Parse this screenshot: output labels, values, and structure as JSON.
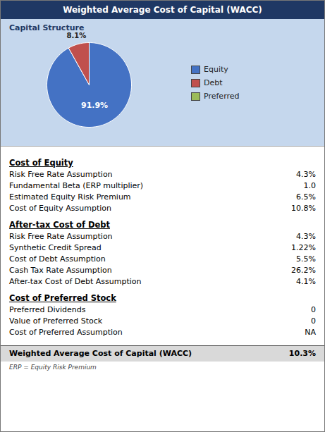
{
  "chart_data": {
    "type": "pie",
    "title": "Weighted Average Cost of Capital (WACC)",
    "subtitle": "Capital Structure",
    "categories": [
      "Equity",
      "Debt",
      "Preferred"
    ],
    "values": [
      91.9,
      8.1,
      0.001
    ],
    "value_labels": [
      "91.9%",
      "8.1%",
      null
    ],
    "data_labels": true,
    "colors": [
      "#4472C4",
      "#C0504D",
      "#9BBB59"
    ],
    "legend": "right",
    "annotations": {
      "sections": [
        {
          "header": "Cost of Equity",
          "rows": [
            [
              "Risk Free Rate Assumption",
              "4.3%"
            ],
            [
              "Fundamental Beta (ERP multiplier)",
              "1.0"
            ],
            [
              "Estimated Equity Risk Premium",
              "6.5%"
            ],
            [
              "Cost of Equity Assumption",
              "10.8%"
            ]
          ]
        },
        {
          "header": "After-tax Cost of Debt",
          "rows": [
            [
              "Risk Free Rate Assumption",
              "4.3%"
            ],
            [
              "Synthetic Credit Spread",
              "1.22%"
            ],
            [
              "Cost of Debt Assumption",
              "5.5%"
            ],
            [
              "Cash Tax Rate Assumption",
              "26.2%"
            ],
            [
              "After-tax Cost of Debt Assumption",
              "4.1%"
            ]
          ]
        },
        {
          "header": "Cost of Preferred Stock",
          "rows": [
            [
              "Preferred Dividends",
              "0"
            ],
            [
              "Value of Preferred Stock",
              "0"
            ],
            [
              "Cost of Preferred Assumption",
              "NA"
            ]
          ]
        }
      ],
      "footer": [
        "Weighted Average Cost of Capital (WACC)",
        "10.3%"
      ],
      "footnote": "ERP = Equity Risk Premium"
    }
  }
}
